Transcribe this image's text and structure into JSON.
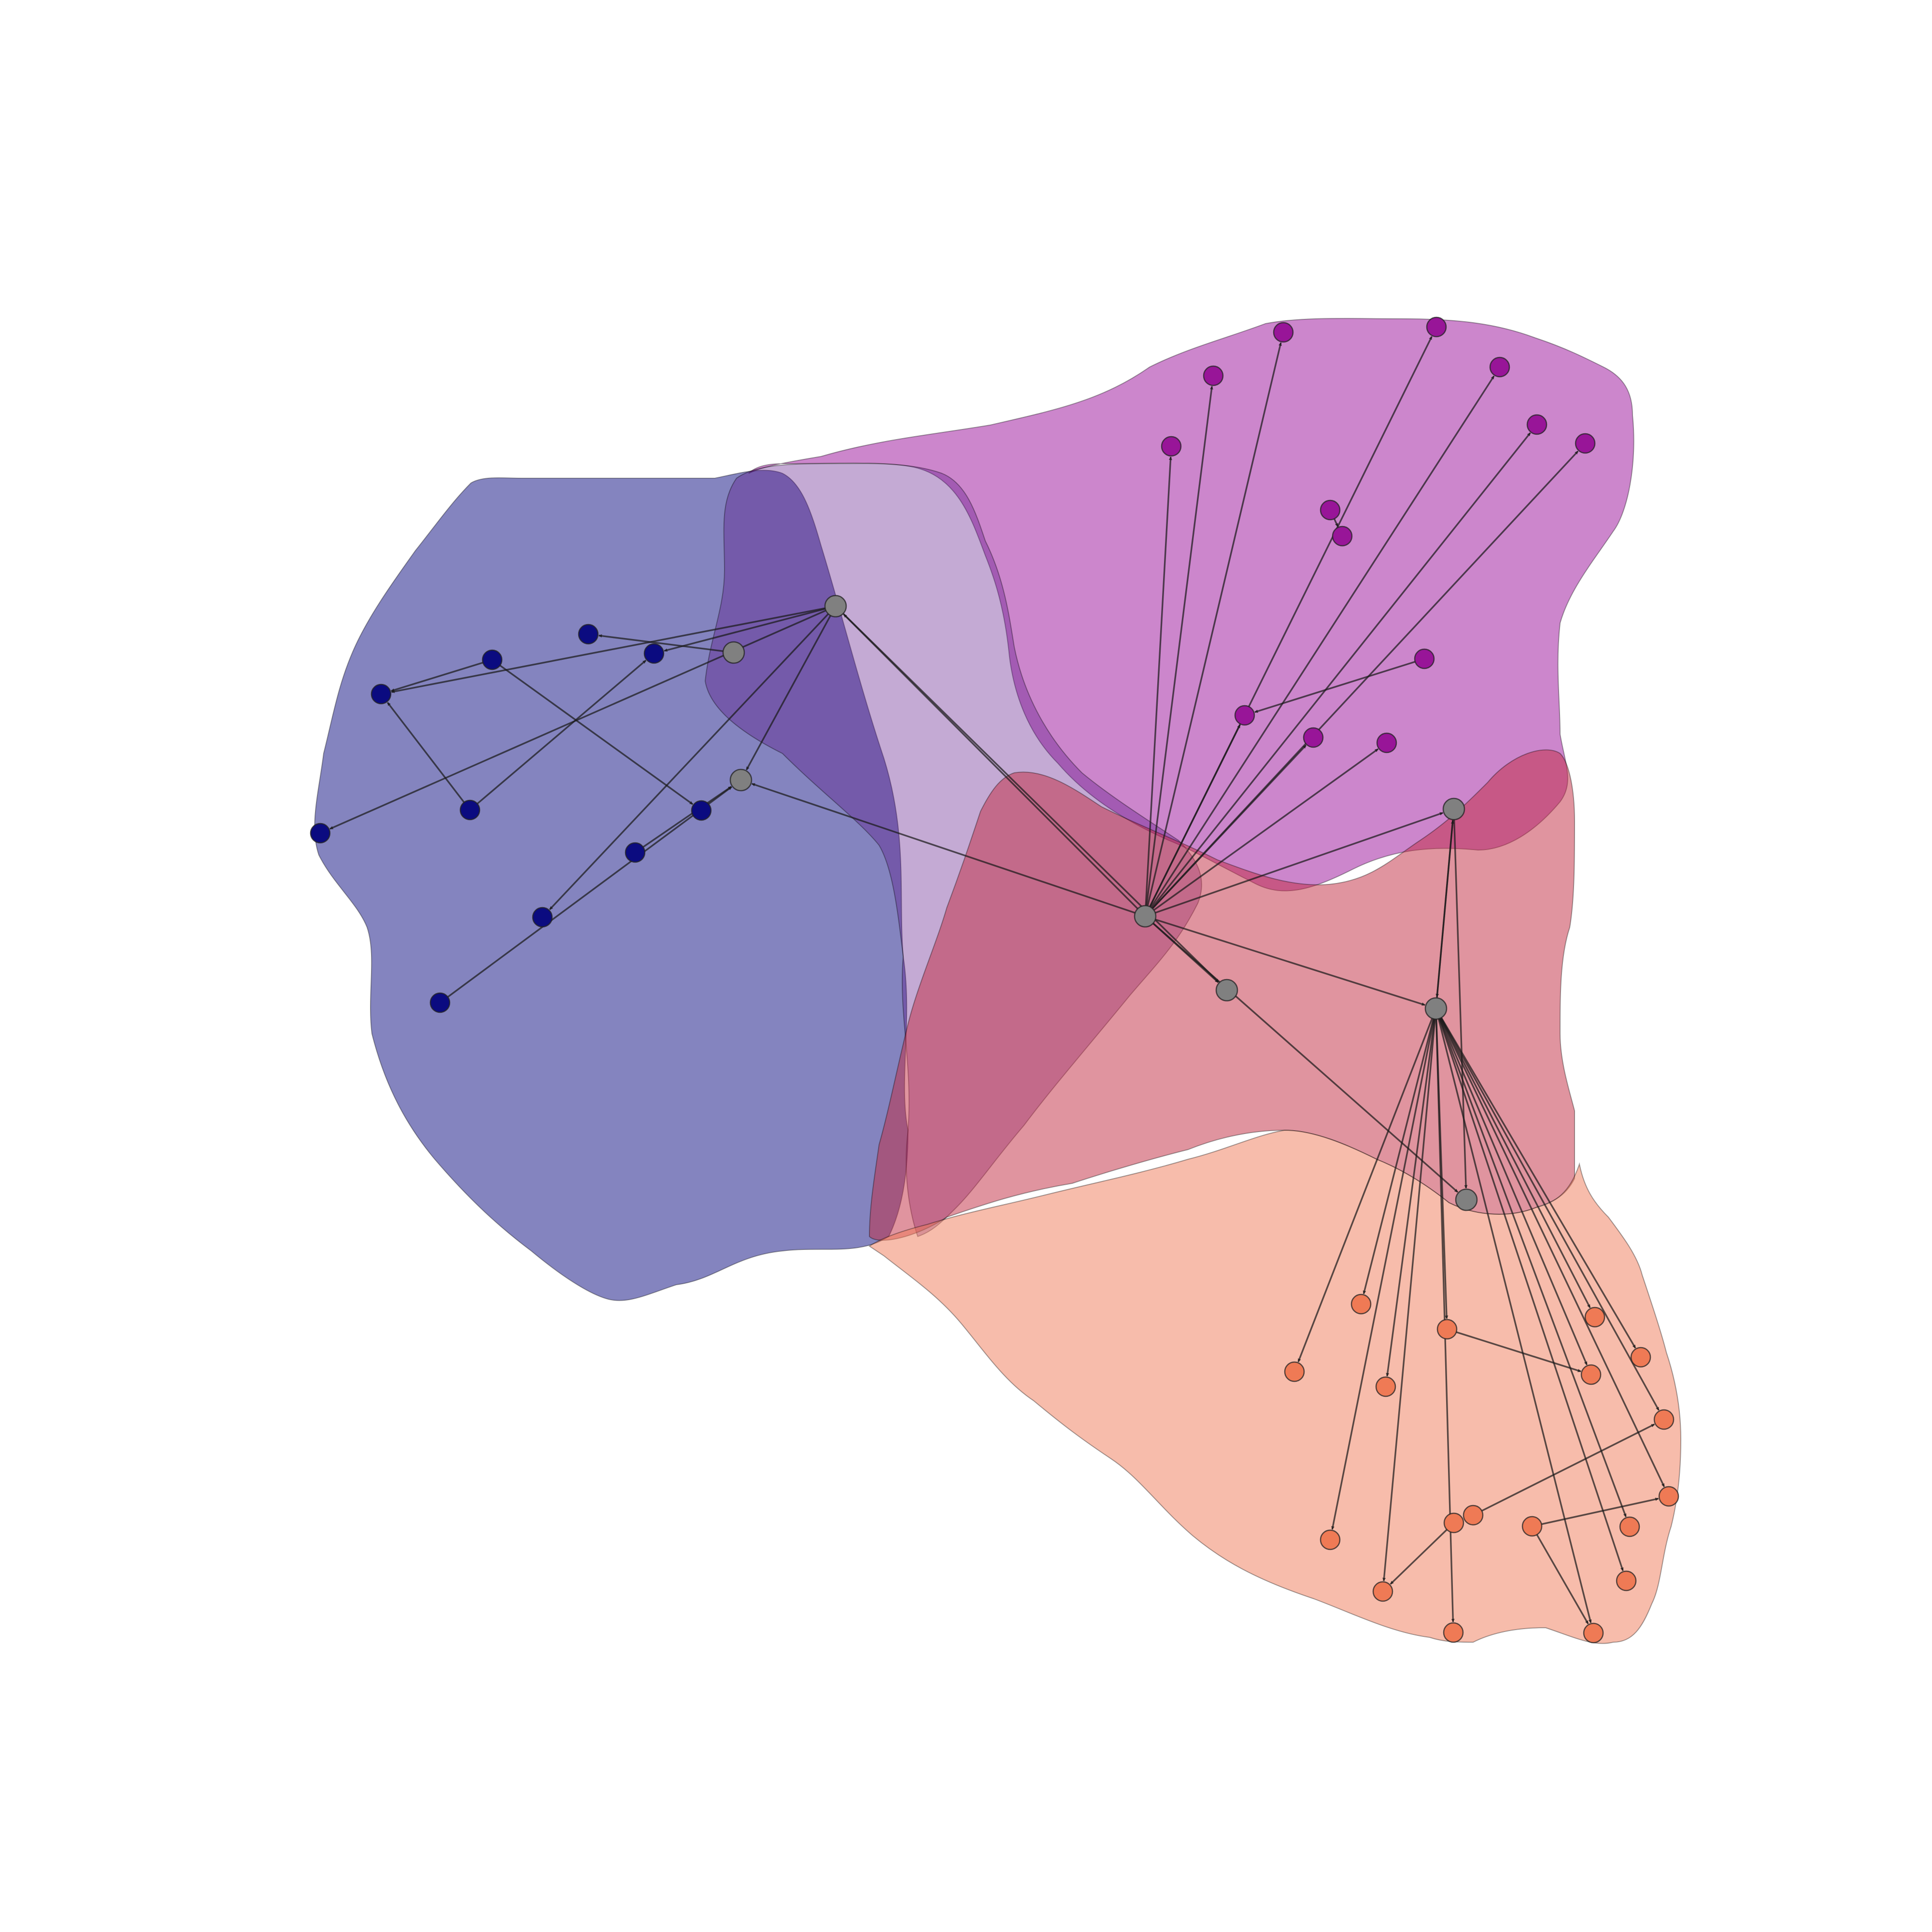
{
  "groups": [
    {
      "id": "blue",
      "color": "#0a0a80",
      "node_color": "#0a0a80",
      "opacity": 0.5
    },
    {
      "id": "purple",
      "color": "#990e99",
      "node_color": "#981398",
      "opacity": 0.5
    },
    {
      "id": "red",
      "color": "#c1293f",
      "node_color": "#808080",
      "opacity": 0.5
    },
    {
      "id": "orange",
      "color": "#ef7a58",
      "node_color": "#ee7a55",
      "opacity": 0.5
    }
  ],
  "nodes": [
    {
      "id": "h0",
      "group": "hub"
    },
    {
      "id": "h1",
      "group": "hub"
    },
    {
      "id": "h2",
      "group": "hub"
    },
    {
      "id": "h3",
      "group": "hub"
    },
    {
      "id": "h4",
      "group": "hub"
    },
    {
      "id": "h5",
      "group": "hub"
    },
    {
      "id": "h6",
      "group": "hub"
    },
    {
      "id": "h7",
      "group": "hub"
    },
    {
      "id": "b1",
      "group": "blue"
    },
    {
      "id": "b2",
      "group": "blue"
    },
    {
      "id": "b3",
      "group": "blue"
    },
    {
      "id": "b4",
      "group": "blue"
    },
    {
      "id": "b5",
      "group": "blue"
    },
    {
      "id": "b6",
      "group": "blue"
    },
    {
      "id": "b7",
      "group": "blue"
    },
    {
      "id": "b8",
      "group": "blue"
    },
    {
      "id": "b9",
      "group": "blue"
    },
    {
      "id": "b10",
      "group": "blue"
    },
    {
      "id": "p1",
      "group": "purple"
    },
    {
      "id": "p2",
      "group": "purple"
    },
    {
      "id": "p3",
      "group": "purple"
    },
    {
      "id": "p4",
      "group": "purple"
    },
    {
      "id": "p5",
      "group": "purple"
    },
    {
      "id": "p6",
      "group": "purple"
    },
    {
      "id": "p7",
      "group": "purple"
    },
    {
      "id": "p8",
      "group": "purple"
    },
    {
      "id": "p9",
      "group": "purple"
    },
    {
      "id": "p10",
      "group": "purple"
    },
    {
      "id": "p11",
      "group": "purple"
    },
    {
      "id": "p12",
      "group": "purple"
    },
    {
      "id": "p13",
      "group": "purple"
    },
    {
      "id": "o1",
      "group": "orange"
    },
    {
      "id": "o2",
      "group": "orange"
    },
    {
      "id": "o3",
      "group": "orange"
    },
    {
      "id": "o4",
      "group": "orange"
    },
    {
      "id": "o5",
      "group": "orange"
    },
    {
      "id": "o6",
      "group": "orange"
    },
    {
      "id": "o7",
      "group": "orange"
    },
    {
      "id": "o8",
      "group": "orange"
    },
    {
      "id": "o9",
      "group": "orange"
    },
    {
      "id": "o10",
      "group": "orange"
    },
    {
      "id": "o11",
      "group": "orange"
    },
    {
      "id": "o12",
      "group": "orange"
    },
    {
      "id": "o13",
      "group": "orange"
    },
    {
      "id": "o14",
      "group": "orange"
    },
    {
      "id": "o15",
      "group": "orange"
    },
    {
      "id": "o16",
      "group": "orange"
    },
    {
      "id": "o17",
      "group": "orange"
    },
    {
      "id": "o18",
      "group": "orange"
    }
  ],
  "edges": [
    [
      "h0",
      "h1"
    ],
    [
      "h0",
      "h3"
    ],
    [
      "h0",
      "h4"
    ],
    [
      "h0",
      "h5"
    ],
    [
      "h0",
      "h6"
    ],
    [
      "h0",
      "h7"
    ],
    [
      "h0",
      "p1"
    ],
    [
      "h0",
      "p2"
    ],
    [
      "h0",
      "p3"
    ],
    [
      "h0",
      "p4"
    ],
    [
      "h0",
      "p5"
    ],
    [
      "h0",
      "p6"
    ],
    [
      "h0",
      "p7"
    ],
    [
      "h0",
      "p10"
    ],
    [
      "h0",
      "p11"
    ],
    [
      "h0",
      "p13"
    ],
    [
      "h1",
      "b1"
    ],
    [
      "h1",
      "b5"
    ],
    [
      "h1",
      "b6"
    ],
    [
      "h1",
      "b8"
    ],
    [
      "h1",
      "h3"
    ],
    [
      "h1",
      "h5"
    ],
    [
      "h2",
      "b3"
    ],
    [
      "b2",
      "b1"
    ],
    [
      "b2",
      "b7"
    ],
    [
      "b4",
      "b1"
    ],
    [
      "b4",
      "b5"
    ],
    [
      "b9",
      "h3"
    ],
    [
      "b10",
      "h3"
    ],
    [
      "p8",
      "p9"
    ],
    [
      "p12",
      "p10"
    ],
    [
      "h4",
      "h6"
    ],
    [
      "h4",
      "h7"
    ],
    [
      "h6",
      "h4"
    ],
    [
      "h6",
      "o1"
    ],
    [
      "h6",
      "o2"
    ],
    [
      "h6",
      "o3"
    ],
    [
      "h6",
      "o4"
    ],
    [
      "h6",
      "o5"
    ],
    [
      "h6",
      "o6"
    ],
    [
      "h6",
      "o7"
    ],
    [
      "h6",
      "o8"
    ],
    [
      "h6",
      "o9"
    ],
    [
      "h6",
      "o10"
    ],
    [
      "h6",
      "o11"
    ],
    [
      "h6",
      "o12"
    ],
    [
      "h6",
      "o13"
    ],
    [
      "h6",
      "o14"
    ],
    [
      "h6",
      "o15"
    ],
    [
      "o16",
      "o12"
    ],
    [
      "o17",
      "o8"
    ],
    [
      "o18",
      "o9"
    ],
    [
      "o18",
      "o15"
    ],
    [
      "o3",
      "o6"
    ]
  ]
}
